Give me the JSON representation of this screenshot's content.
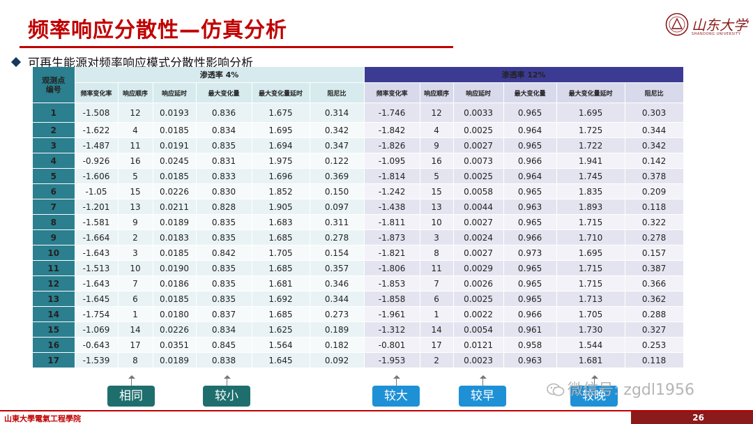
{
  "title": "频率响应分散性—仿真分析",
  "subtitle": "可再生能源对频率响应模式分散性影响分析",
  "logo": {
    "text": "山东大学",
    "sub": "SHANDONG UNIVERSITY"
  },
  "table": {
    "obs_header": [
      "观测点",
      "编号"
    ],
    "group1": "渗透率  4%",
    "group2": "渗透率  12%",
    "columns": [
      "频率变化率",
      "响应顺序",
      "响应延时",
      "最大变化量",
      "最大变化量延时",
      "阻尼比"
    ],
    "rows": [
      [
        "1",
        "-1.508",
        "12",
        "0.0193",
        "0.836",
        "1.675",
        "0.314",
        "-1.746",
        "12",
        "0.0033",
        "0.965",
        "1.695",
        "0.303"
      ],
      [
        "2",
        "-1.622",
        "4",
        "0.0185",
        "0.834",
        "1.695",
        "0.342",
        "-1.842",
        "4",
        "0.0025",
        "0.964",
        "1.725",
        "0.344"
      ],
      [
        "3",
        "-1.487",
        "11",
        "0.0191",
        "0.835",
        "1.694",
        "0.347",
        "-1.826",
        "9",
        "0.0027",
        "0.965",
        "1.722",
        "0.342"
      ],
      [
        "4",
        "-0.926",
        "16",
        "0.0245",
        "0.831",
        "1.975",
        "0.122",
        "-1.095",
        "16",
        "0.0073",
        "0.966",
        "1.941",
        "0.142"
      ],
      [
        "5",
        "-1.606",
        "5",
        "0.0185",
        "0.833",
        "1.696",
        "0.369",
        "-1.814",
        "5",
        "0.0025",
        "0.964",
        "1.745",
        "0.378"
      ],
      [
        "6",
        "-1.05",
        "15",
        "0.0226",
        "0.830",
        "1.852",
        "0.150",
        "-1.242",
        "15",
        "0.0058",
        "0.965",
        "1.835",
        "0.209"
      ],
      [
        "7",
        "-1.201",
        "13",
        "0.0211",
        "0.828",
        "1.905",
        "0.097",
        "-1.438",
        "13",
        "0.0044",
        "0.963",
        "1.893",
        "0.118"
      ],
      [
        "8",
        "-1.581",
        "9",
        "0.0189",
        "0.835",
        "1.683",
        "0.311",
        "-1.811",
        "10",
        "0.0027",
        "0.965",
        "1.715",
        "0.322"
      ],
      [
        "9",
        "-1.664",
        "2",
        "0.0183",
        "0.835",
        "1.685",
        "0.278",
        "-1.873",
        "3",
        "0.0024",
        "0.966",
        "1.710",
        "0.278"
      ],
      [
        "10",
        "-1.643",
        "3",
        "0.0185",
        "0.842",
        "1.705",
        "0.154",
        "-1.821",
        "8",
        "0.0027",
        "0.973",
        "1.695",
        "0.157"
      ],
      [
        "11",
        "-1.513",
        "10",
        "0.0190",
        "0.835",
        "1.685",
        "0.357",
        "-1.806",
        "11",
        "0.0029",
        "0.965",
        "1.715",
        "0.387"
      ],
      [
        "12",
        "-1.643",
        "7",
        "0.0186",
        "0.835",
        "1.681",
        "0.346",
        "-1.853",
        "7",
        "0.0026",
        "0.965",
        "1.715",
        "0.366"
      ],
      [
        "13",
        "-1.645",
        "6",
        "0.0185",
        "0.835",
        "1.692",
        "0.344",
        "-1.858",
        "6",
        "0.0025",
        "0.965",
        "1.713",
        "0.362"
      ],
      [
        "14",
        "-1.754",
        "1",
        "0.0180",
        "0.837",
        "1.685",
        "0.273",
        "-1.961",
        "1",
        "0.0022",
        "0.966",
        "1.705",
        "0.288"
      ],
      [
        "15",
        "-1.069",
        "14",
        "0.0226",
        "0.834",
        "1.625",
        "0.189",
        "-1.312",
        "14",
        "0.0054",
        "0.961",
        "1.730",
        "0.327"
      ],
      [
        "16",
        "-0.643",
        "17",
        "0.0351",
        "0.845",
        "1.564",
        "0.182",
        "-0.801",
        "17",
        "0.0121",
        "0.958",
        "1.544",
        "0.253"
      ],
      [
        "17",
        "-1.539",
        "8",
        "0.0189",
        "0.838",
        "1.645",
        "0.092",
        "-1.953",
        "2",
        "0.0023",
        "0.963",
        "1.681",
        "0.118"
      ]
    ]
  },
  "tags": [
    "相同",
    "较小",
    "较大",
    "较早",
    "较晚"
  ],
  "watermark": "微信号: zgdl1956",
  "footer": {
    "text": "山東大學電氣工程學院",
    "page": "26"
  },
  "colors": {
    "accent": "#c00000",
    "teal": "#2b7f8e",
    "indigo": "#3c3b93"
  }
}
